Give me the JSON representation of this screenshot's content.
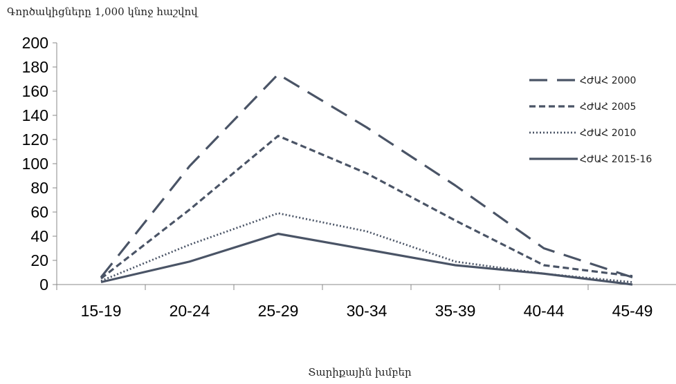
{
  "chart_data": {
    "type": "line",
    "title": "Գործակիցները 1,000 կնոջ հաշվով",
    "xlabel": "Տարիքային խմբեր",
    "ylabel": "",
    "categories": [
      "15-19",
      "20-24",
      "25-29",
      "30-34",
      "35-39",
      "40-44",
      "45-49"
    ],
    "ylim": [
      0,
      200
    ],
    "yticks": [
      0,
      20,
      40,
      60,
      80,
      100,
      120,
      140,
      160,
      180,
      200
    ],
    "grid": false,
    "legend_position": "right",
    "series": [
      {
        "name": "ՀԺԱՀ 2000",
        "style": "long-dash",
        "values": [
          6,
          98,
          174,
          130,
          82,
          30,
          6
        ]
      },
      {
        "name": "ՀԺԱՀ 2005",
        "style": "dash",
        "values": [
          5,
          62,
          123,
          92,
          53,
          16,
          7
        ]
      },
      {
        "name": "ՀԺԱՀ 2010",
        "style": "dot",
        "values": [
          3,
          33,
          59,
          44,
          19,
          9,
          2
        ]
      },
      {
        "name": "ՀԺԱՀ 2015-16",
        "style": "solid",
        "values": [
          2,
          19,
          42,
          29,
          16,
          9,
          0
        ]
      }
    ],
    "line_color": "#4a5466"
  }
}
